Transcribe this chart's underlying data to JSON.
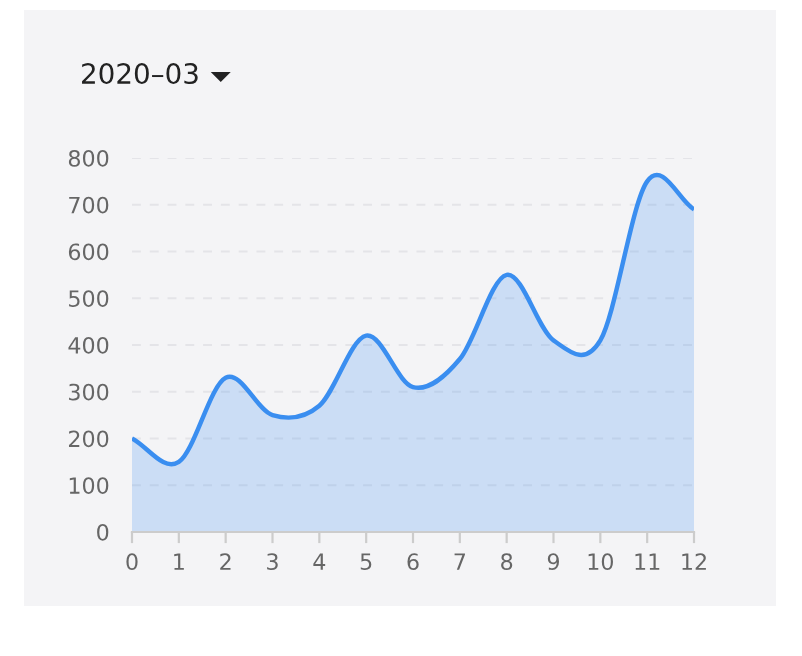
{
  "chart_data": {
    "type": "area",
    "title": "2020–03",
    "x": [
      0,
      1,
      2,
      3,
      4,
      5,
      6,
      7,
      8,
      9,
      10,
      11,
      12
    ],
    "series": [
      {
        "color": "#3a8ef0",
        "values": [
          200,
          150,
          330,
          250,
          270,
          420,
          310,
          370,
          550,
          410,
          410,
          750,
          690
        ]
      }
    ],
    "xlim": [
      0,
      12
    ],
    "xticks": [
      0,
      1,
      2,
      3,
      4,
      5,
      6,
      7,
      8,
      9,
      10,
      11,
      12
    ],
    "ylim": [
      0,
      800
    ],
    "yticks": [
      0,
      100,
      200,
      300,
      400,
      500,
      600,
      700,
      800
    ],
    "grid": "y",
    "marker": "none",
    "line_style": "solid"
  }
}
